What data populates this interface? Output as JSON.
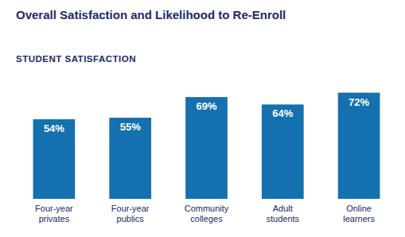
{
  "chart_data": {
    "type": "bar",
    "title": "Overall Satisfaction and Likelihood to Re-Enroll",
    "subtitle": "STUDENT SATISFACTION",
    "categories": [
      "Four-year\nprivates",
      "Four-year\npublics",
      "Community\ncolleges",
      "Adult\nstudents",
      "Online\nlearners"
    ],
    "values": [
      54,
      55,
      69,
      64,
      72
    ],
    "value_labels": [
      "54%",
      "55%",
      "69%",
      "64%",
      "72%"
    ],
    "data_labels": true,
    "color": "#1470ae",
    "ylim": [
      0,
      82
    ],
    "grid": false,
    "tick_labels": "x"
  }
}
